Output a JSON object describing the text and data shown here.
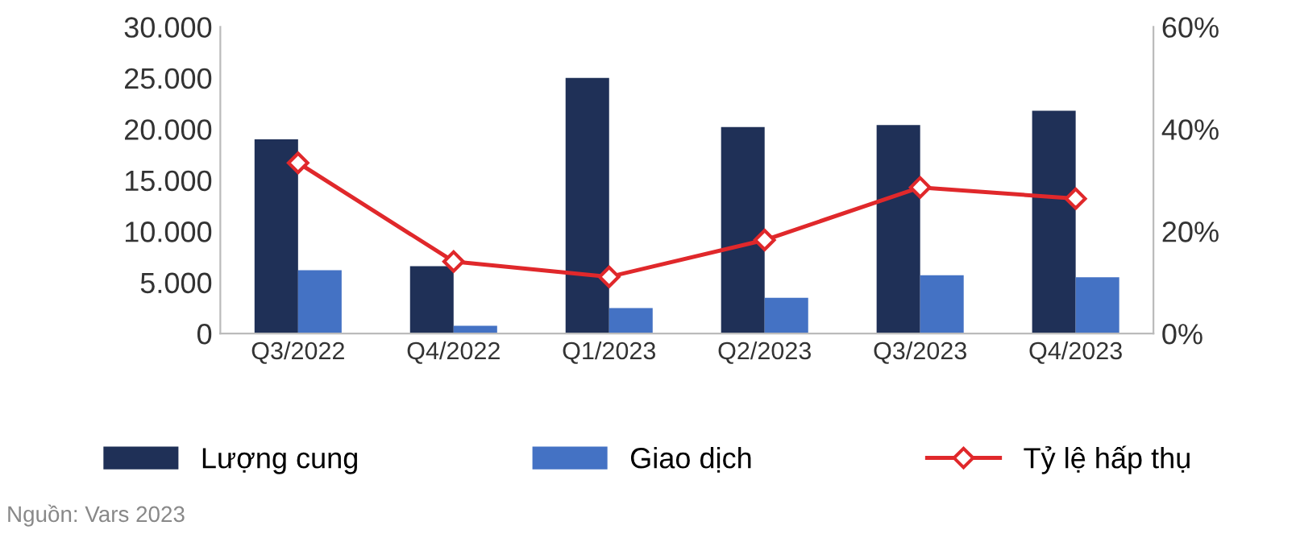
{
  "chart_data": {
    "type": "bar",
    "categories": [
      "Q3/2022",
      "Q4/2022",
      "Q1/2023",
      "Q2/2023",
      "Q3/2023",
      "Q4/2023"
    ],
    "series": [
      {
        "name": "Lượng cung",
        "color": "#1f3057",
        "values": [
          19000,
          6600,
          25000,
          20200,
          20400,
          21800
        ]
      },
      {
        "name": "Giao dịch",
        "color": "#4472c4",
        "values": [
          6200,
          760,
          2500,
          3500,
          5700,
          5500
        ]
      },
      {
        "name": "Tỷ lệ hấp thụ",
        "type": "line",
        "axis": "y2",
        "color": "#e0282b",
        "marker": "diamond",
        "values": [
          33.4,
          14.1,
          11.1,
          18.3,
          28.6,
          26.4
        ]
      }
    ],
    "ylim": [
      0,
      30000
    ],
    "yticks": [
      {
        "value": 0,
        "label": "0"
      },
      {
        "value": 5000,
        "label": "5.000"
      },
      {
        "value": 10000,
        "label": "10.000"
      },
      {
        "value": 15000,
        "label": "15.000"
      },
      {
        "value": 20000,
        "label": "20.000"
      },
      {
        "value": 25000,
        "label": "25.000"
      },
      {
        "value": 30000,
        "label": "30.000"
      }
    ],
    "y2lim": [
      0,
      60
    ],
    "y2ticks": [
      {
        "value": 0,
        "label": "0%"
      },
      {
        "value": 20,
        "label": "20%"
      },
      {
        "value": 40,
        "label": "40%"
      },
      {
        "value": 60,
        "label": "60%"
      }
    ],
    "grid": false,
    "legend": "bottom",
    "annotations": [
      "Nguồn: Vars 2023"
    ]
  }
}
